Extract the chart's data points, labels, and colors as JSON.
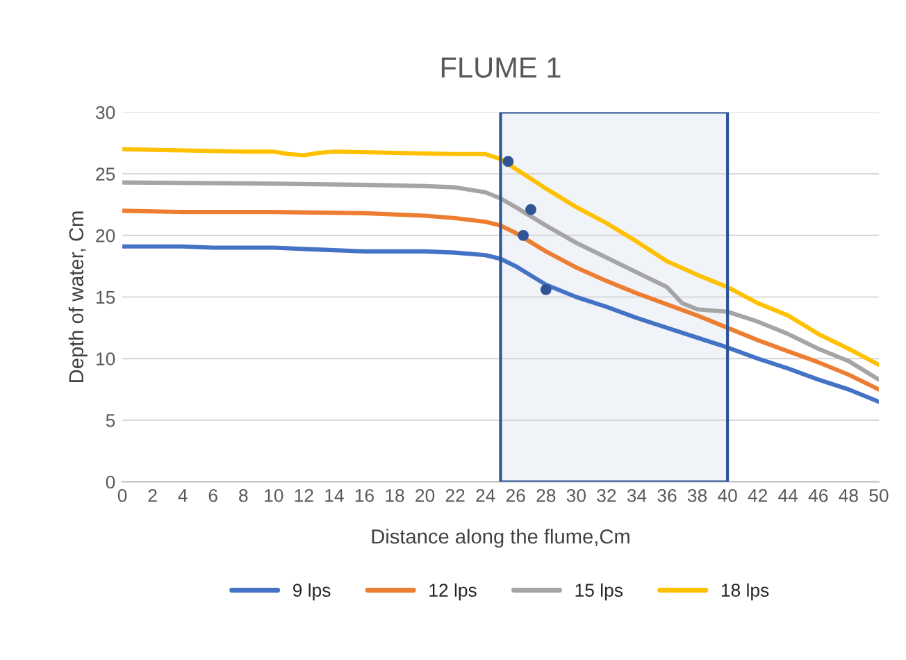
{
  "chart_data": {
    "type": "line",
    "title": "FLUME 1",
    "xlabel": "Distance along the flume,Cm",
    "ylabel": "Depth of water, Cm",
    "xlim": [
      0,
      50
    ],
    "xticks": [
      0,
      2,
      4,
      6,
      8,
      10,
      12,
      14,
      16,
      18,
      20,
      22,
      24,
      26,
      28,
      30,
      32,
      34,
      36,
      38,
      40,
      42,
      44,
      46,
      48,
      50
    ],
    "ylim": [
      0,
      30
    ],
    "yticks": [
      0,
      5,
      10,
      15,
      20,
      25,
      30
    ],
    "grid": "y",
    "legend": "bottom",
    "line_style": "solid",
    "bands": [
      {
        "axis": "x",
        "from": 25,
        "to": 40,
        "color": "#2f5597"
      }
    ],
    "series": [
      {
        "name": "9 lps",
        "color": "#4472c4",
        "x": [
          0,
          2,
          4,
          6,
          8,
          10,
          12,
          14,
          16,
          18,
          20,
          22,
          24,
          25,
          26,
          28,
          30,
          32,
          34,
          36,
          38,
          40,
          42,
          44,
          46,
          48,
          50
        ],
        "values": [
          19.1,
          19.1,
          19.1,
          19.0,
          19.0,
          19.0,
          18.9,
          18.8,
          18.7,
          18.7,
          18.7,
          18.6,
          18.4,
          18.1,
          17.5,
          16.0,
          15.0,
          14.2,
          13.3,
          12.5,
          11.7,
          10.9,
          10.0,
          9.2,
          8.3,
          7.5,
          6.5
        ]
      },
      {
        "name": "12 lps",
        "color": "#ed7d31",
        "x": [
          0,
          4,
          10,
          16,
          20,
          22,
          24,
          25,
          26,
          28,
          30,
          32,
          34,
          36,
          38,
          40,
          42,
          44,
          46,
          48,
          50
        ],
        "values": [
          22.0,
          21.9,
          21.9,
          21.8,
          21.6,
          21.4,
          21.1,
          20.8,
          20.2,
          18.7,
          17.4,
          16.3,
          15.3,
          14.4,
          13.5,
          12.5,
          11.5,
          10.6,
          9.7,
          8.7,
          7.5
        ]
      },
      {
        "name": "15 lps",
        "color": "#a5a5a5",
        "x": [
          0,
          10,
          16,
          20,
          22,
          24,
          25,
          26,
          28,
          30,
          32,
          34,
          36,
          37,
          38,
          40,
          42,
          44,
          46,
          48,
          50
        ],
        "values": [
          24.3,
          24.2,
          24.1,
          24.0,
          23.9,
          23.5,
          23.0,
          22.3,
          20.8,
          19.4,
          18.2,
          17.0,
          15.8,
          14.5,
          14.0,
          13.8,
          13.0,
          12.0,
          10.8,
          9.8,
          8.3
        ]
      },
      {
        "name": "18 lps",
        "color": "#ffc000",
        "x": [
          0,
          4,
          8,
          10,
          11,
          12,
          13,
          14,
          18,
          22,
          24,
          25,
          26,
          28,
          30,
          32,
          34,
          36,
          38,
          40,
          42,
          44,
          46,
          48,
          50
        ],
        "values": [
          27.0,
          26.9,
          26.8,
          26.8,
          26.6,
          26.5,
          26.7,
          26.8,
          26.7,
          26.6,
          26.6,
          26.2,
          25.4,
          23.8,
          22.3,
          21.0,
          19.5,
          17.9,
          16.8,
          15.8,
          14.5,
          13.5,
          12.0,
          10.8,
          9.5
        ]
      },
      {
        "type": "scatter",
        "marker": "circle",
        "color": "#2f5597",
        "x": [
          25.5,
          26.5,
          27,
          28
        ],
        "values": [
          26.0,
          20.0,
          22.1,
          15.6
        ]
      }
    ]
  }
}
